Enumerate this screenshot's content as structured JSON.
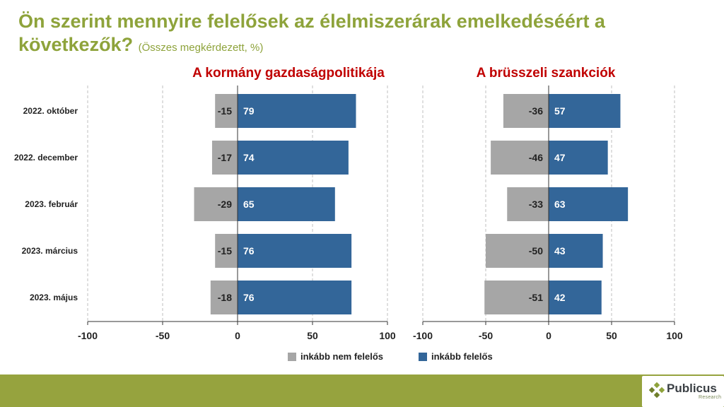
{
  "header": {
    "title_main": "Ön szerint mennyire felelősek az élelmiszerárak emelkedéséért a következők?",
    "title_sub": "(Összes megkérdezett, %)"
  },
  "colors": {
    "negative": "#a6a6a6",
    "positive": "#336699",
    "title_green": "#8ea33b",
    "panel_title_red": "#c00000",
    "footer": "#96a33e"
  },
  "legend": [
    {
      "label": "inkább nem felelős",
      "color": "#a6a6a6"
    },
    {
      "label": "inkább felelős",
      "color": "#336699"
    }
  ],
  "footer": {
    "logo_name": "Publicus",
    "logo_tag": "Research"
  },
  "chart_data": [
    {
      "type": "bar",
      "orientation": "horizontal",
      "stacked": "diverging",
      "title": "A kormány gazdaságpolitikája",
      "categories": [
        "2022. október",
        "2022. december",
        "2023. február",
        "2023. március",
        "2023. május"
      ],
      "series": [
        {
          "name": "inkább nem felelős",
          "values": [
            -15,
            -17,
            -29,
            -15,
            -18
          ]
        },
        {
          "name": "inkább felelős",
          "values": [
            79,
            74,
            65,
            76,
            76
          ]
        }
      ],
      "xlim": [
        -100,
        100
      ],
      "xticks": [
        -100,
        -50,
        0,
        50,
        100
      ],
      "grid": true
    },
    {
      "type": "bar",
      "orientation": "horizontal",
      "stacked": "diverging",
      "title": "A brüsszeli szankciók",
      "categories": [
        "2022. október",
        "2022. december",
        "2023. február",
        "2023. március",
        "2023. május"
      ],
      "series": [
        {
          "name": "inkább nem felelős",
          "values": [
            -36,
            -46,
            -33,
            -50,
            -51
          ]
        },
        {
          "name": "inkább felelős",
          "values": [
            57,
            47,
            63,
            43,
            42
          ]
        }
      ],
      "xlim": [
        -100,
        100
      ],
      "xticks": [
        -100,
        -50,
        0,
        50,
        100
      ],
      "grid": true
    }
  ]
}
